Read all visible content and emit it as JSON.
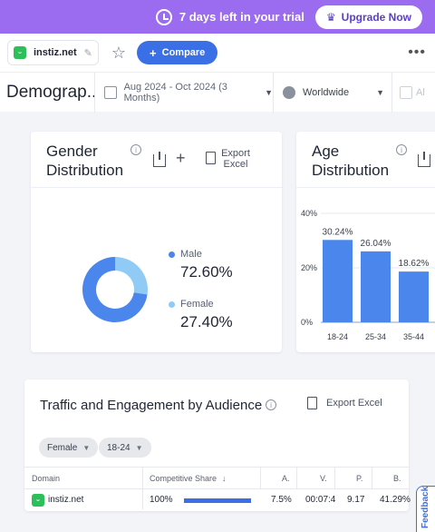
{
  "trial": {
    "message": "7 days left in your trial",
    "upgrade_label": "Upgrade Now"
  },
  "toolbar": {
    "site": "instiz.net",
    "compare_label": "Compare",
    "more": "•••"
  },
  "filters": {
    "page_title": "Demograp...",
    "date_range": "Aug 2024 - Oct 2024 (3 Months)",
    "geo": "Worldwide",
    "extra": "Al"
  },
  "gender": {
    "title": "Gender Distribution",
    "export_label_1": "Export",
    "export_label_2": "Excel",
    "male_label": "Male",
    "male_value": "72.60%",
    "female_label": "Female",
    "female_value": "27.40%",
    "male_share": 0.726,
    "colors": {
      "male": "#4b86ec",
      "female": "#8fcbf5"
    }
  },
  "age": {
    "title": "Age Distribution",
    "chart_data": {
      "type": "bar",
      "categories": [
        "18-24",
        "25-34",
        "35-44"
      ],
      "values": [
        30.24,
        26.04,
        18.62
      ],
      "value_labels": [
        "30.24%",
        "26.04%",
        "18.62%"
      ],
      "y_ticks": [
        "40%",
        "20%",
        "0%"
      ],
      "ylim": [
        0,
        40
      ],
      "color": "#4b86ec"
    }
  },
  "traffic": {
    "title": "Traffic and Engagement by Audience",
    "export_label": "Export Excel",
    "chips": [
      "Female",
      "18-24"
    ],
    "columns": {
      "domain": "Domain",
      "share": "Competitive Share",
      "c1": "A.",
      "c2": "V.",
      "c3": "P.",
      "c4": "B."
    },
    "row": {
      "domain": "instiz.net",
      "share": "100%",
      "share_fraction": 1.0,
      "c1": "7.5%",
      "c2": "00:07:4",
      "c3": "9.17",
      "c4": "41.29%"
    }
  },
  "feedback": {
    "label": "Feedback"
  }
}
